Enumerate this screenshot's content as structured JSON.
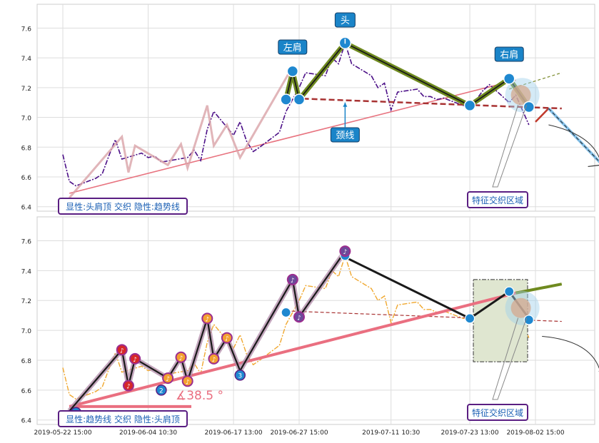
{
  "chart_data": [
    {
      "type": "line",
      "panel": "top",
      "ylim": [
        6.37,
        7.76
      ],
      "y_ticks": [
        "6.4",
        "6.6",
        "6.8",
        "7.0",
        "7.2",
        "7.4",
        "7.6"
      ],
      "y_tick_values": [
        6.4,
        6.6,
        6.8,
        7.0,
        7.2,
        7.4,
        7.6
      ],
      "grid": true,
      "series": [
        {
          "name": "",
          "style": "purple dash-dot price line",
          "x": [
            "2019-05-22",
            "2019-05-23",
            "2019-05-24",
            "2019-05-27",
            "2019-05-28",
            "2019-05-29",
            "2019-05-30",
            "2019-05-31",
            "2019-06-03",
            "2019-06-04",
            "2019-06-05",
            "2019-06-06",
            "2019-06-10",
            "2019-06-11",
            "2019-06-12",
            "2019-06-13",
            "2019-06-14",
            "2019-06-17",
            "2019-06-18",
            "2019-06-19",
            "2019-06-20",
            "2019-06-21",
            "2019-06-24",
            "2019-06-25",
            "2019-06-26",
            "2019-06-27",
            "2019-06-28",
            "2019-07-01",
            "2019-07-02",
            "2019-07-03",
            "2019-07-04",
            "2019-07-05",
            "2019-07-08",
            "2019-07-09",
            "2019-07-10",
            "2019-07-11",
            "2019-07-12",
            "2019-07-15",
            "2019-07-16",
            "2019-07-17",
            "2019-07-18",
            "2019-07-19",
            "2019-07-22",
            "2019-07-23",
            "2019-07-24",
            "2019-07-25",
            "2019-07-26",
            "2019-07-29",
            "2019-07-30",
            "2019-07-31",
            "2019-08-01"
          ],
          "y": [
            6.75,
            6.57,
            6.54,
            6.59,
            6.62,
            6.74,
            6.85,
            6.72,
            6.76,
            6.73,
            6.74,
            6.7,
            6.73,
            6.78,
            6.71,
            6.92,
            7.04,
            6.88,
            6.97,
            6.84,
            6.77,
            6.8,
            6.9,
            7.04,
            7.12,
            7.2,
            7.3,
            7.28,
            7.4,
            7.36,
            7.5,
            7.36,
            7.28,
            7.2,
            7.23,
            7.05,
            7.17,
            7.19,
            7.14,
            7.14,
            7.12,
            7.13,
            7.08,
            7.09,
            7.12,
            7.18,
            7.22,
            7.1,
            7.15,
            7.05,
            6.95
          ]
        }
      ],
      "pattern": {
        "name": "头肩顶",
        "points": [
          {
            "x": "2019-06-25",
            "y": 7.12
          },
          {
            "x": "2019-06-26",
            "y": 7.31
          },
          {
            "x": "2019-06-27",
            "y": 7.12
          },
          {
            "x": "2019-07-04",
            "y": 7.5
          },
          {
            "x": "2019-07-23",
            "y": 7.08
          },
          {
            "x": "2019-07-29",
            "y": 7.26
          },
          {
            "x": "2019-08-01",
            "y": 7.07
          }
        ],
        "neckline": [
          {
            "x": "2019-06-25",
            "y": 7.13
          },
          {
            "x": "2019-08-06",
            "y": 7.06
          }
        ],
        "trendline": [
          {
            "x": "2019-05-23",
            "y": 6.49
          },
          {
            "x": "2019-07-30",
            "y": 7.25
          }
        ]
      },
      "annotations": {
        "left_shoulder": "左肩",
        "head": "头",
        "right_shoulder": "右肩",
        "neckline": "颈线",
        "zone": "特征交织区域",
        "caption": "显性:头肩顶 交织 隐性:趋势线"
      }
    },
    {
      "type": "line",
      "panel": "bottom",
      "ylim": [
        6.37,
        7.76
      ],
      "y_ticks": [
        "6.4",
        "6.6",
        "6.8",
        "7.0",
        "7.2",
        "7.4",
        "7.6"
      ],
      "y_tick_values": [
        6.4,
        6.6,
        6.8,
        7.0,
        7.2,
        7.4,
        7.6
      ],
      "x_ticks": [
        "2019-05-22 15:00",
        "2019-06-04 10:30",
        "2019-06-17 13:00",
        "2019-06-27 15:00",
        "2019-07-11 10:30",
        "2019-07-23 13:00",
        "2019-08-02 15:00"
      ],
      "grid": true,
      "series": [
        {
          "name": "",
          "style": "orange dash-dot price line"
        }
      ],
      "pattern": {
        "name": "趋势线",
        "angle": "∡38.5 °",
        "zigzag": [
          {
            "x": "2019-05-23",
            "y": 6.46
          },
          {
            "x": "2019-05-31",
            "y": 6.87
          },
          {
            "x": "2019-06-01",
            "y": 6.63
          },
          {
            "x": "2019-06-02",
            "y": 6.81
          },
          {
            "x": "2019-06-07",
            "y": 6.68
          },
          {
            "x": "2019-06-09",
            "y": 6.82
          },
          {
            "x": "2019-06-10",
            "y": 6.66
          },
          {
            "x": "2019-06-13",
            "y": 7.08
          },
          {
            "x": "2019-06-14",
            "y": 6.81
          },
          {
            "x": "2019-06-16",
            "y": 6.95
          },
          {
            "x": "2019-06-18",
            "y": 6.73
          },
          {
            "x": "2019-06-26",
            "y": 7.34
          },
          {
            "x": "2019-06-27",
            "y": 7.09
          },
          {
            "x": "2019-07-04",
            "y": 7.53
          }
        ]
      },
      "annotations": {
        "zone": "特征交织区域",
        "caption": "显性:趋势线 交织 隐性:头肩顶",
        "markers": [
          "1",
          "2",
          "3"
        ]
      }
    }
  ]
}
